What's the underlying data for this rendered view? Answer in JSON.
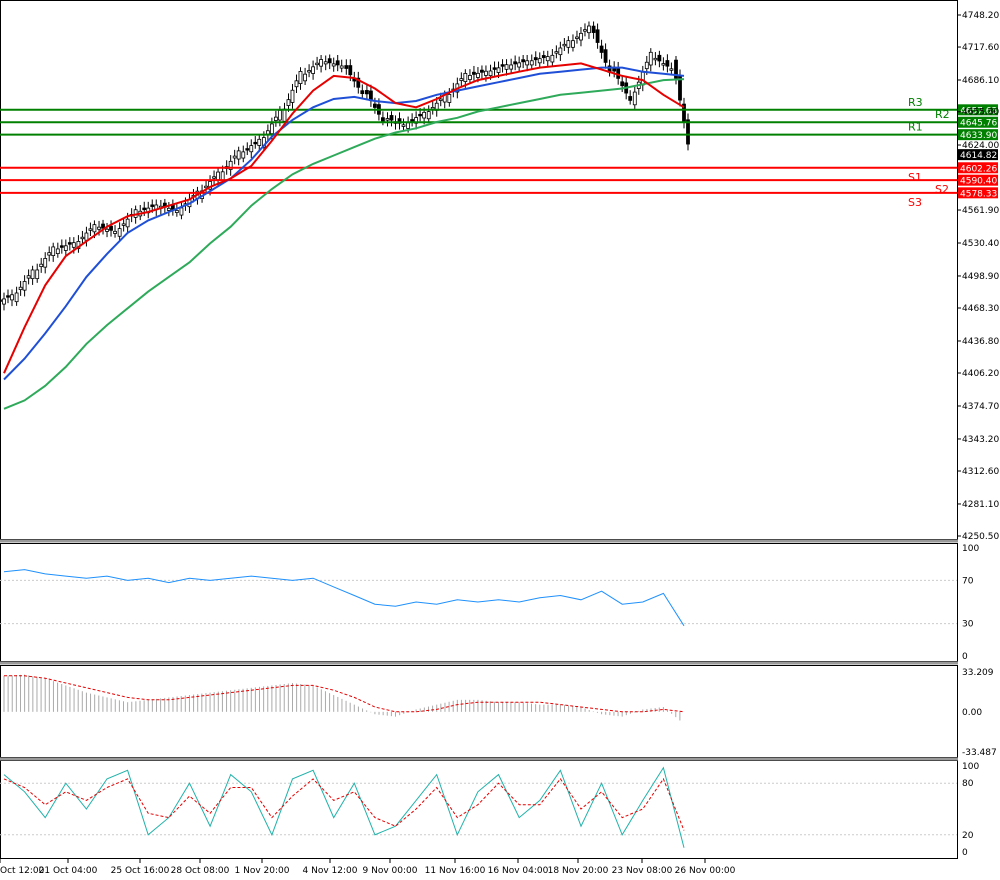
{
  "chart_data": [
    {
      "type": "candlestick",
      "panel": "price",
      "ylim": [
        4250.5,
        4748.2
      ],
      "y_ticks": [
        "4748.20",
        "4717.60",
        "4686.10",
        "4655.80",
        "4624.00",
        "4561.90",
        "4530.40",
        "4498.90",
        "4468.30",
        "4436.80",
        "4406.20",
        "4374.70",
        "4343.20",
        "4312.60",
        "4281.10",
        "4250.50"
      ],
      "x_ticks": [
        "Oct 12:00",
        "21 Oct 04:00",
        "25 Oct 16:00",
        "28 Oct 08:00",
        "1 Nov 20:00",
        "4 Nov 12:00",
        "9 Nov 00:00",
        "11 Nov 16:00",
        "16 Nov 04:00",
        "18 Nov 20:00",
        "23 Nov 08:00",
        "26 Nov 00:00"
      ],
      "current_price": "4614.82",
      "resistance": [
        {
          "label": "R1",
          "value": "4633.90"
        },
        {
          "label": "R2",
          "value": "4645.76"
        },
        {
          "label": "R3",
          "value": "4657.63"
        }
      ],
      "support": [
        {
          "label": "S1",
          "value": "4602.26"
        },
        {
          "label": "S2",
          "value": "4590.40"
        },
        {
          "label": "S3",
          "value": "4578.33"
        }
      ],
      "colors": {
        "resistance": "#008000",
        "support": "#ff0000",
        "ma_fast": "#e60000",
        "ma_mid": "#1f4fd6",
        "ma_slow": "#2eaa5a",
        "candle": "#000000"
      },
      "ma_fast": [
        4406,
        4450,
        4490,
        4518,
        4532,
        4546,
        4556,
        4560,
        4566,
        4572,
        4584,
        4592,
        4604,
        4628,
        4654,
        4676,
        4690,
        4688,
        4678,
        4664,
        4660,
        4668,
        4678,
        4686,
        4690,
        4694,
        4698,
        4700,
        4702,
        4696,
        4690,
        4686,
        4672,
        4660
      ],
      "ma_mid": [
        4400,
        4420,
        4444,
        4470,
        4498,
        4520,
        4540,
        4552,
        4560,
        4568,
        4580,
        4592,
        4610,
        4632,
        4648,
        4660,
        4668,
        4670,
        4666,
        4664,
        4666,
        4672,
        4676,
        4680,
        4684,
        4688,
        4692,
        4694,
        4696,
        4698,
        4698,
        4694,
        4692,
        4690
      ],
      "ma_slow": [
        4372,
        4380,
        4394,
        4412,
        4434,
        4452,
        4468,
        4484,
        4498,
        4512,
        4530,
        4546,
        4566,
        4582,
        4596,
        4606,
        4614,
        4622,
        4630,
        4636,
        4640,
        4646,
        4650,
        4656,
        4660,
        4664,
        4668,
        4672,
        4674,
        4676,
        4678,
        4682,
        4686,
        4687
      ],
      "close": [
        4480,
        4502,
        4524,
        4530,
        4546,
        4542,
        4560,
        4566,
        4562,
        4578,
        4596,
        4616,
        4628,
        4654,
        4690,
        4704,
        4700,
        4676,
        4650,
        4644,
        4654,
        4670,
        4690,
        4694,
        4700,
        4704,
        4708,
        4722,
        4736,
        4698,
        4670,
        4708,
        4698,
        4614
      ]
    },
    {
      "type": "line",
      "panel": "rsi",
      "ylim": [
        0,
        100
      ],
      "y_ticks": [
        "100",
        "70",
        "30",
        "0"
      ],
      "values": [
        78,
        80,
        76,
        74,
        72,
        74,
        70,
        72,
        68,
        72,
        70,
        72,
        74,
        72,
        70,
        72,
        64,
        56,
        48,
        46,
        50,
        48,
        52,
        50,
        52,
        50,
        54,
        56,
        52,
        60,
        48,
        50,
        58,
        28
      ]
    },
    {
      "type": "bar",
      "panel": "macd",
      "ylim": [
        -33.487,
        33.209
      ],
      "y_ticks": [
        "33.209",
        "0.00",
        "-33.487"
      ],
      "histogram": [
        30,
        31,
        28,
        22,
        16,
        12,
        8,
        10,
        12,
        14,
        16,
        18,
        20,
        22,
        24,
        22,
        14,
        6,
        -2,
        -4,
        2,
        6,
        10,
        10,
        8,
        8,
        6,
        6,
        4,
        -2,
        -4,
        2,
        4,
        -10
      ],
      "signal": [
        30,
        30,
        28,
        24,
        20,
        16,
        12,
        10,
        10,
        12,
        14,
        16,
        18,
        20,
        22,
        22,
        18,
        12,
        4,
        0,
        0,
        2,
        6,
        8,
        8,
        8,
        8,
        6,
        4,
        2,
        0,
        0,
        2,
        0
      ]
    },
    {
      "type": "line",
      "panel": "stochastic",
      "ylim": [
        0,
        100
      ],
      "y_ticks": [
        "100",
        "80",
        "20",
        "0"
      ],
      "k": [
        90,
        70,
        40,
        80,
        50,
        85,
        95,
        20,
        40,
        80,
        30,
        90,
        70,
        20,
        85,
        95,
        40,
        80,
        20,
        30,
        60,
        90,
        20,
        70,
        90,
        40,
        60,
        95,
        30,
        80,
        20,
        60,
        98,
        5
      ],
      "d": [
        85,
        75,
        55,
        70,
        60,
        75,
        85,
        45,
        40,
        65,
        45,
        75,
        75,
        40,
        65,
        85,
        60,
        70,
        40,
        30,
        50,
        75,
        40,
        55,
        80,
        55,
        55,
        85,
        50,
        70,
        40,
        50,
        85,
        25
      ]
    }
  ]
}
